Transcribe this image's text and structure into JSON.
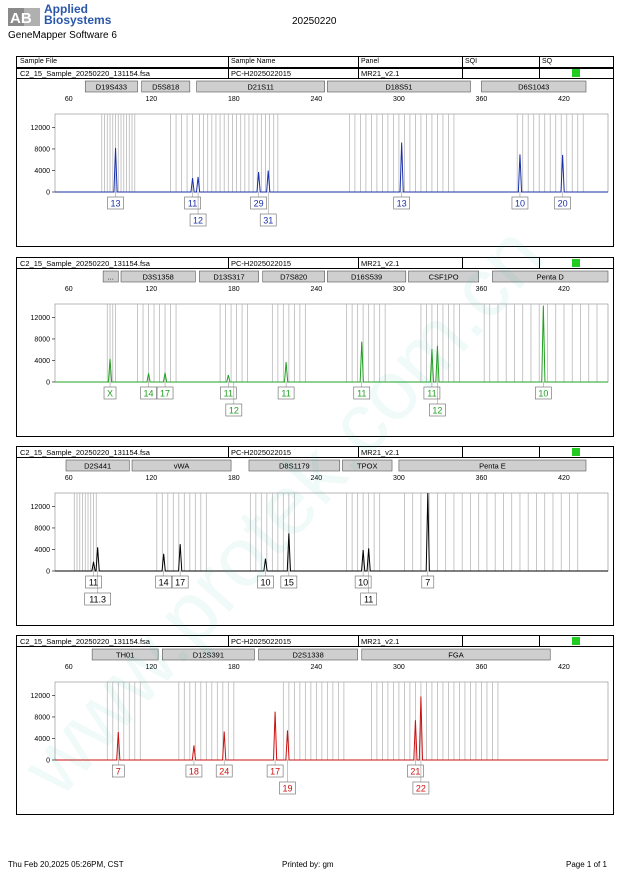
{
  "header": {
    "logo_letters": "AB",
    "brand_line1": "Applied",
    "brand_line2": "Biosystems",
    "software": "GeneMapper Software 6",
    "date": "20250220",
    "columns": [
      "Sample File",
      "Sample Name",
      "Panel",
      "SQI",
      "SQ"
    ]
  },
  "footer": {
    "left": "Thu Feb 20,2025 05:26PM, CST",
    "middle": "Printed by: gm",
    "right": "Page 1 of 1"
  },
  "watermark": "www.protek.com.cn",
  "colors": {
    "blue": "#1a2fa8",
    "green": "#22a022",
    "black": "#000000",
    "red": "#cc1111",
    "sq_status": "#22cc22",
    "marker_box": "#cfcfcf",
    "allele_bin": "#b8b8b8"
  },
  "chart_data": [
    {
      "type": "line",
      "dye": "blue",
      "sample_file": "C2_15_Sample_20250220_131154.fsa",
      "sample_name": "PC-H2025022015",
      "panel": "MR21_v2.1",
      "x_ticks": [
        60,
        120,
        180,
        240,
        300,
        360,
        420
      ],
      "y_ticks": [
        0,
        4000,
        8000,
        12000
      ],
      "xlim": [
        50,
        452
      ],
      "ylim": [
        0,
        14500
      ],
      "markers": [
        {
          "name": "D19S433",
          "start": 72,
          "end": 110
        },
        {
          "name": "D5S818",
          "start": 113,
          "end": 148
        },
        {
          "name": "D21S11",
          "start": 153,
          "end": 246
        },
        {
          "name": "D18S51",
          "start": 248,
          "end": 352
        },
        {
          "name": "D6S1043",
          "start": 360,
          "end": 436
        }
      ],
      "bins": [
        84,
        86,
        88,
        90,
        92,
        94,
        96,
        98,
        100,
        102,
        104,
        106,
        108,
        134,
        138,
        142,
        146,
        150,
        155,
        158,
        161,
        164,
        167,
        170,
        173,
        176,
        179,
        182,
        185,
        188,
        191,
        194,
        197,
        200,
        203,
        206,
        209,
        212,
        264,
        268,
        272,
        276,
        280,
        284,
        288,
        292,
        296,
        300,
        304,
        308,
        312,
        316,
        320,
        324,
        328,
        332,
        336,
        340,
        386,
        390,
        394,
        398,
        402,
        406,
        410,
        414,
        418,
        422,
        426,
        430,
        434
      ],
      "peaks": [
        {
          "x": 94,
          "height": 8200
        },
        {
          "x": 150,
          "height": 2600
        },
        {
          "x": 154,
          "height": 2800
        },
        {
          "x": 198,
          "height": 3700
        },
        {
          "x": 205,
          "height": 4000
        },
        {
          "x": 302,
          "height": 9200
        },
        {
          "x": 388,
          "height": 7000
        },
        {
          "x": 419,
          "height": 6900
        }
      ],
      "alleles": [
        {
          "label": "13",
          "x": 94,
          "row": 0
        },
        {
          "label": "11",
          "x": 150,
          "row": 0
        },
        {
          "label": "12",
          "x": 154,
          "row": 1
        },
        {
          "label": "29",
          "x": 198,
          "row": 0
        },
        {
          "label": "31",
          "x": 205,
          "row": 1
        },
        {
          "label": "13",
          "x": 302,
          "row": 0
        },
        {
          "label": "10",
          "x": 388,
          "row": 0
        },
        {
          "label": "20",
          "x": 419,
          "row": 0
        }
      ]
    },
    {
      "type": "line",
      "dye": "green",
      "sample_file": "C2_15_Sample_20250220_131154.fsa",
      "sample_name": "PC-H2025022015",
      "panel": "MR21_v2.1",
      "x_ticks": [
        60,
        120,
        180,
        240,
        300,
        360,
        420
      ],
      "y_ticks": [
        0,
        4000,
        8000,
        12000
      ],
      "xlim": [
        50,
        452
      ],
      "ylim": [
        0,
        14500
      ],
      "markers": [
        {
          "name": "...",
          "start": 85,
          "end": 96
        },
        {
          "name": "D3S1358",
          "start": 98,
          "end": 152
        },
        {
          "name": "D13S317",
          "start": 155,
          "end": 198
        },
        {
          "name": "D7S820",
          "start": 201,
          "end": 246
        },
        {
          "name": "D16S539",
          "start": 248,
          "end": 305
        },
        {
          "name": "CSF1PO",
          "start": 307,
          "end": 358
        },
        {
          "name": "Penta D",
          "start": 368,
          "end": 452
        }
      ],
      "bins": [
        88,
        90,
        92,
        94,
        110,
        114,
        118,
        122,
        126,
        130,
        134,
        138,
        170,
        174,
        178,
        182,
        186,
        190,
        208,
        212,
        216,
        220,
        224,
        228,
        232,
        262,
        266,
        270,
        274,
        278,
        282,
        286,
        290,
        316,
        320,
        324,
        328,
        332,
        336,
        340,
        344,
        362,
        366,
        372,
        378,
        384,
        390,
        396,
        402,
        408,
        414,
        420,
        426,
        432,
        438,
        444
      ],
      "peaks": [
        {
          "x": 90,
          "height": 4300
        },
        {
          "x": 118,
          "height": 1600
        },
        {
          "x": 130,
          "height": 1700
        },
        {
          "x": 176,
          "height": 1300
        },
        {
          "x": 218,
          "height": 3700
        },
        {
          "x": 273,
          "height": 7500
        },
        {
          "x": 324,
          "height": 6100
        },
        {
          "x": 328,
          "height": 6700
        },
        {
          "x": 405,
          "height": 14200
        }
      ],
      "alleles": [
        {
          "label": "X",
          "x": 90,
          "row": 0
        },
        {
          "label": "14",
          "x": 118,
          "row": 0
        },
        {
          "label": "17",
          "x": 130,
          "row": 0
        },
        {
          "label": "11",
          "x": 176,
          "row": 0
        },
        {
          "label": "12",
          "x": 180,
          "row": 1
        },
        {
          "label": "11",
          "x": 218,
          "row": 0
        },
        {
          "label": "11",
          "x": 273,
          "row": 0
        },
        {
          "label": "11",
          "x": 324,
          "row": 0
        },
        {
          "label": "12",
          "x": 328,
          "row": 1
        },
        {
          "label": "10",
          "x": 405,
          "row": 0
        }
      ]
    },
    {
      "type": "line",
      "dye": "black",
      "sample_file": "C2_15_Sample_20250220_131154.fsa",
      "sample_name": "PC-H2025022015",
      "panel": "MR21_v2.1",
      "x_ticks": [
        60,
        120,
        180,
        240,
        300,
        360,
        420
      ],
      "y_ticks": [
        0,
        4000,
        8000,
        12000
      ],
      "xlim": [
        50,
        452
      ],
      "ylim": [
        0,
        14500
      ],
      "markers": [
        {
          "name": "D2S441",
          "start": 58,
          "end": 104
        },
        {
          "name": "vWA",
          "start": 106,
          "end": 178
        },
        {
          "name": "D8S1179",
          "start": 191,
          "end": 257
        },
        {
          "name": "TPOX",
          "start": 259,
          "end": 295
        },
        {
          "name": "Penta E",
          "start": 300,
          "end": 436
        }
      ],
      "bins": [
        64,
        66,
        68,
        70,
        72,
        74,
        76,
        78,
        80,
        124,
        128,
        132,
        136,
        140,
        144,
        148,
        152,
        156,
        160,
        192,
        196,
        200,
        204,
        208,
        212,
        216,
        220,
        224,
        262,
        266,
        270,
        274,
        278,
        282,
        286,
        304,
        310,
        316,
        322,
        328,
        334,
        340,
        346,
        352,
        358,
        364,
        370,
        376,
        382,
        388,
        394,
        400,
        406,
        412,
        418,
        424,
        430
      ],
      "peaks": [
        {
          "x": 78,
          "height": 1700
        },
        {
          "x": 81,
          "height": 4400
        },
        {
          "x": 129,
          "height": 3200
        },
        {
          "x": 141,
          "height": 5000
        },
        {
          "x": 203,
          "height": 2300
        },
        {
          "x": 220,
          "height": 7000
        },
        {
          "x": 274,
          "height": 3900
        },
        {
          "x": 278,
          "height": 4200
        },
        {
          "x": 321,
          "height": 14500
        }
      ],
      "alleles": [
        {
          "label": "11",
          "x": 78,
          "row": 0
        },
        {
          "label": "11.3",
          "x": 81,
          "row": 1
        },
        {
          "label": "14",
          "x": 129,
          "row": 0
        },
        {
          "label": "17",
          "x": 141,
          "row": 0
        },
        {
          "label": "10",
          "x": 203,
          "row": 0
        },
        {
          "label": "15",
          "x": 220,
          "row": 0
        },
        {
          "label": "10",
          "x": 274,
          "row": 0
        },
        {
          "label": "11",
          "x": 278,
          "row": 1
        },
        {
          "label": "7",
          "x": 321,
          "row": 0
        }
      ]
    },
    {
      "type": "line",
      "dye": "red",
      "sample_file": "C2_15_Sample_20250220_131154.fsa",
      "sample_name": "PC-H2025022015",
      "panel": "MR21_v2.1",
      "x_ticks": [
        60,
        120,
        180,
        240,
        300,
        360,
        420
      ],
      "y_ticks": [
        0,
        4000,
        8000,
        12000
      ],
      "xlim": [
        50,
        452
      ],
      "ylim": [
        0,
        14500
      ],
      "markers": [
        {
          "name": "TH01",
          "start": 77,
          "end": 125
        },
        {
          "name": "D12S391",
          "start": 128,
          "end": 195
        },
        {
          "name": "D2S1338",
          "start": 198,
          "end": 270
        },
        {
          "name": "FGA",
          "start": 273,
          "end": 410
        }
      ],
      "bins": [
        88,
        92,
        96,
        100,
        104,
        108,
        112,
        140,
        144,
        148,
        152,
        156,
        160,
        164,
        168,
        172,
        176,
        180,
        216,
        220,
        224,
        228,
        232,
        236,
        240,
        244,
        248,
        252,
        256,
        260,
        280,
        284,
        288,
        292,
        296,
        300,
        304,
        308,
        312,
        316,
        320,
        324,
        328,
        332,
        336,
        340,
        344,
        348,
        352,
        356,
        360,
        364,
        368,
        372
      ],
      "peaks": [
        {
          "x": 96,
          "height": 5200
        },
        {
          "x": 151,
          "height": 2700
        },
        {
          "x": 173,
          "height": 5300
        },
        {
          "x": 210,
          "height": 9000
        },
        {
          "x": 219,
          "height": 5500
        },
        {
          "x": 312,
          "height": 7400
        },
        {
          "x": 316,
          "height": 11800
        }
      ],
      "alleles": [
        {
          "label": "7",
          "x": 96,
          "row": 0
        },
        {
          "label": "18",
          "x": 151,
          "row": 0
        },
        {
          "label": "24",
          "x": 173,
          "row": 0
        },
        {
          "label": "17",
          "x": 210,
          "row": 0
        },
        {
          "label": "19",
          "x": 219,
          "row": 1
        },
        {
          "label": "21",
          "x": 312,
          "row": 0
        },
        {
          "label": "22",
          "x": 316,
          "row": 1
        }
      ]
    }
  ]
}
